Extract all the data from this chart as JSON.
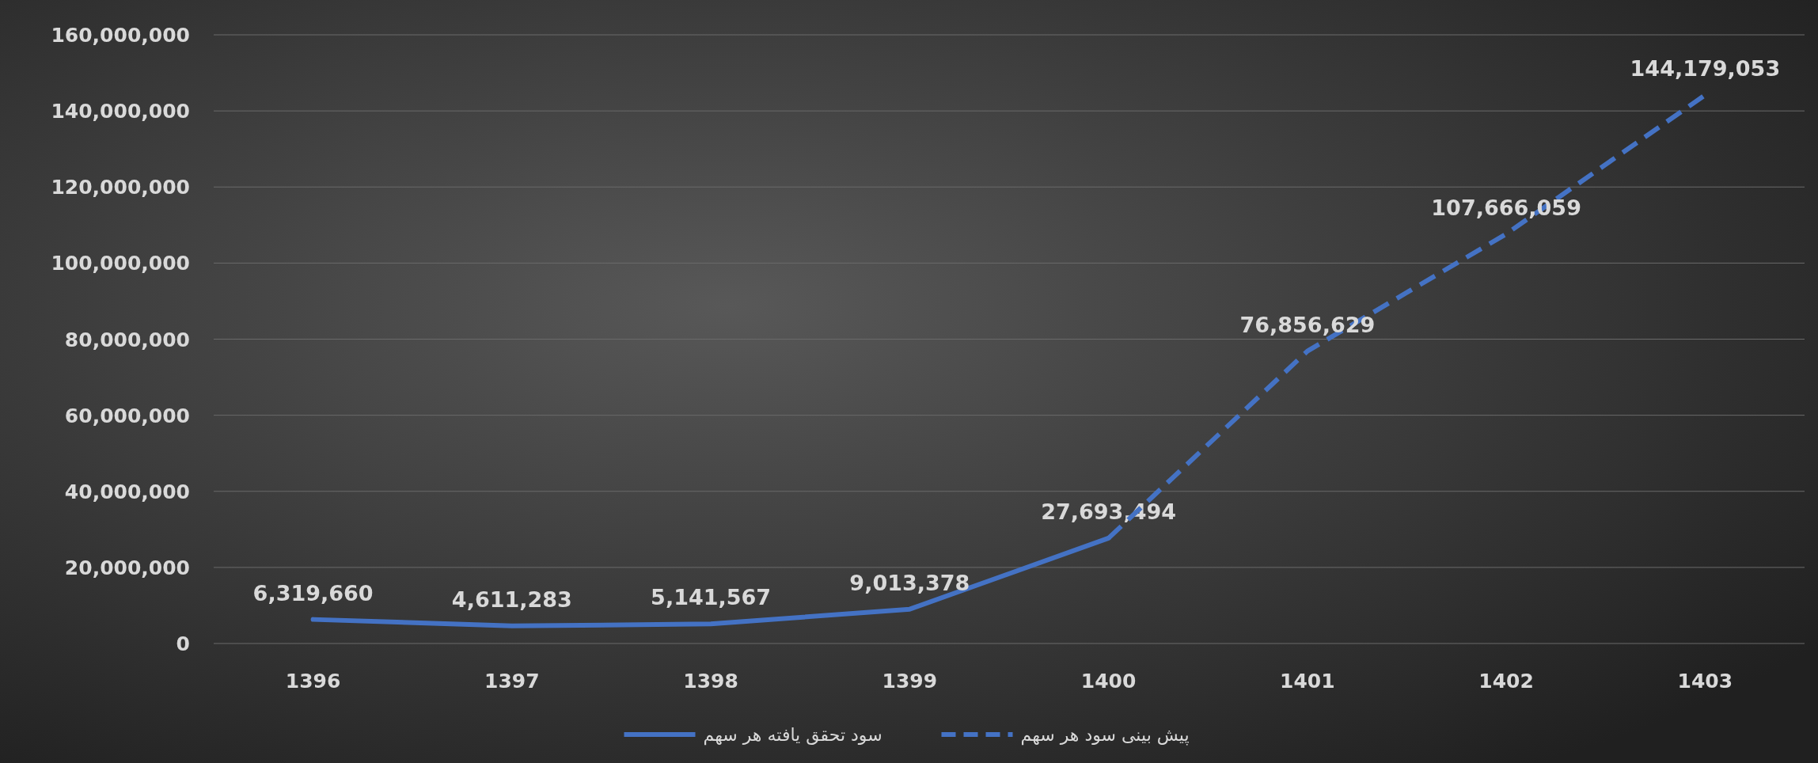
{
  "chart_data": {
    "type": "line",
    "categories": [
      "1396",
      "1397",
      "1398",
      "1399",
      "1400",
      "1401",
      "1402",
      "1403"
    ],
    "series": [
      {
        "name": "سود تحقق یافته هر سهم",
        "color": "#4472c4",
        "line_style": "solid",
        "values": [
          6319660,
          4611283,
          5141567,
          9013378,
          27693494,
          null,
          null,
          null
        ],
        "value_labels": [
          "6,319,660",
          "4,611,283",
          "5,141,567",
          "9,013,378",
          "27,693,494",
          null,
          null,
          null
        ]
      },
      {
        "name": "پیش بینی سود هر سهم",
        "color": "#4472c4",
        "line_style": "dashed",
        "values": [
          null,
          null,
          null,
          null,
          27693494,
          76856629,
          107666059,
          144179053
        ],
        "value_labels": [
          null,
          null,
          null,
          null,
          null,
          "76,856,629",
          "107,666,059",
          "144,179,053"
        ]
      }
    ],
    "ylim": [
      0,
      160000000
    ],
    "yticks": [
      {
        "value": 0,
        "label": "0"
      },
      {
        "value": 20000000,
        "label": "20,000,000"
      },
      {
        "value": 40000000,
        "label": "40,000,000"
      },
      {
        "value": 60000000,
        "label": "60,000,000"
      },
      {
        "value": 80000000,
        "label": "80,000,000"
      },
      {
        "value": 100000000,
        "label": "100,000,000"
      },
      {
        "value": 120000000,
        "label": "120,000,000"
      },
      {
        "value": 140000000,
        "label": "140,000,000"
      },
      {
        "value": 160000000,
        "label": "160,000,000"
      }
    ],
    "grid": "y",
    "legend": "bottom",
    "marker": "none"
  }
}
